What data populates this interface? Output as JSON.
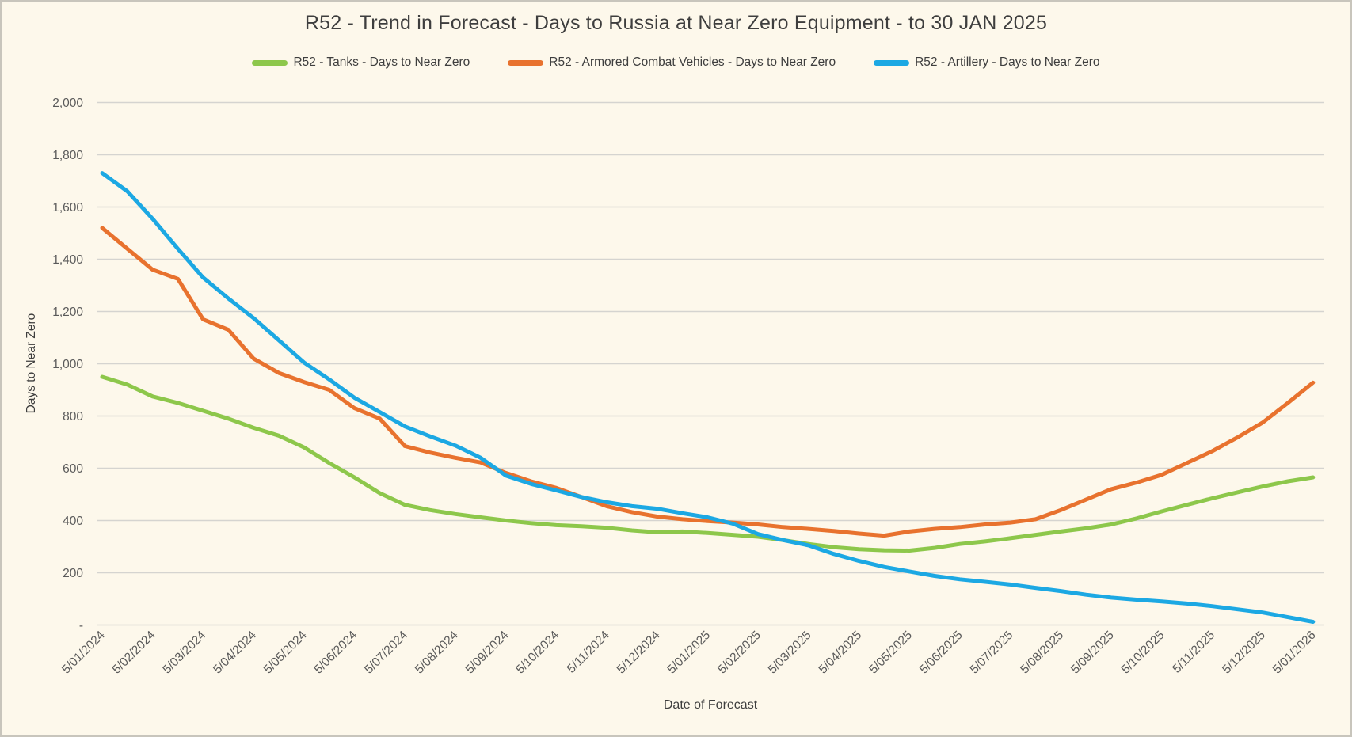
{
  "chart": {
    "title": "R52 - Trend in Forecast - Days to Russia at Near Zero Equipment - to 30 JAN 2025",
    "x_axis_label": "Date of Forecast",
    "y_axis_label": "Days to Near Zero"
  },
  "chart_data": {
    "type": "line",
    "title": "R52 - Trend in Forecast - Days to Russia at Near Zero Equipment - to 30 JAN 2025",
    "xlabel": "Date of Forecast",
    "ylabel": "Days to Near Zero",
    "ylim": [
      0,
      2000
    ],
    "y_tick_step": 200,
    "y_tick_labels": [
      "-",
      "200",
      "400",
      "600",
      "800",
      "1,000",
      "1,200",
      "1,400",
      "1,600",
      "1,800",
      "2,000"
    ],
    "x_tick_labels": [
      "5/01/2024",
      "5/02/2024",
      "5/03/2024",
      "5/04/2024",
      "5/05/2024",
      "5/06/2024",
      "5/07/2024",
      "5/08/2024",
      "5/09/2024",
      "5/10/2024",
      "5/11/2024",
      "5/12/2024",
      "5/01/2025",
      "5/02/2025",
      "5/03/2025",
      "5/04/2025",
      "5/05/2025",
      "5/06/2025",
      "5/07/2025",
      "5/08/2025",
      "5/09/2025",
      "5/10/2025",
      "5/11/2025",
      "5/12/2025",
      "5/01/2026"
    ],
    "x_step_months": 0.5,
    "grid": true,
    "legend_position": "top",
    "background_color": "#FDF8EB",
    "gridline_color": "#D5D4D0",
    "series": [
      {
        "name": "R52 - Tanks - Days to Near Zero",
        "color": "#8DC74B",
        "values": [
          950,
          920,
          875,
          850,
          820,
          790,
          755,
          725,
          680,
          620,
          565,
          505,
          460,
          440,
          425,
          412,
          400,
          390,
          382,
          378,
          372,
          362,
          355,
          358,
          352,
          345,
          338,
          325,
          310,
          298,
          290,
          286,
          285,
          295,
          310,
          320,
          332,
          345,
          358,
          370,
          385,
          408,
          435,
          460,
          485,
          508,
          530,
          550,
          565
        ]
      },
      {
        "name": "R52 - Armored Combat Vehicles - Days to Near Zero",
        "color": "#E8722E",
        "values": [
          1520,
          1440,
          1360,
          1325,
          1170,
          1130,
          1020,
          965,
          930,
          900,
          830,
          790,
          685,
          660,
          640,
          622,
          582,
          550,
          525,
          490,
          455,
          432,
          415,
          405,
          398,
          392,
          385,
          375,
          368,
          360,
          350,
          342,
          358,
          368,
          375,
          385,
          392,
          405,
          440,
          480,
          520,
          545,
          575,
          620,
          665,
          718,
          775,
          850,
          928
        ]
      },
      {
        "name": "R52 - Artillery - Days to Near Zero",
        "color": "#1CA8E3",
        "values": [
          1730,
          1660,
          1555,
          1440,
          1330,
          1250,
          1175,
          1090,
          1005,
          940,
          870,
          815,
          760,
          722,
          687,
          640,
          572,
          540,
          515,
          490,
          470,
          455,
          445,
          428,
          412,
          388,
          348,
          325,
          305,
          272,
          245,
          222,
          205,
          188,
          175,
          165,
          155,
          142,
          130,
          116,
          105,
          97,
          90,
          82,
          72,
          60,
          48,
          30,
          12
        ]
      }
    ]
  }
}
